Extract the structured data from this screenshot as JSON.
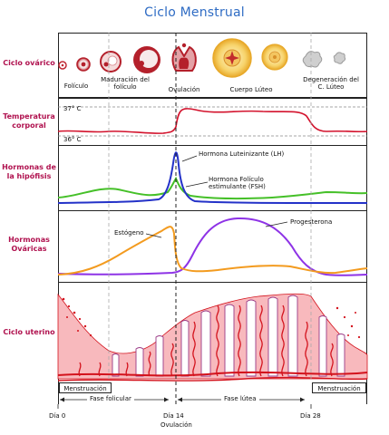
{
  "title": "Ciclo Menstrual",
  "rows": {
    "ovarian": "Ciclo ovárico",
    "temperature": "Temperatura corporal",
    "pituitary": "Hormonas de la hipófisis",
    "ovarian_hormones": "Hormonas Ováricas",
    "uterine": "Ciclo uterino"
  },
  "ovarian_stages": {
    "follicle": "Folículo",
    "maturation": "Maduración del folículo",
    "ovulation": "Ovulación",
    "corpus_luteum": "Cuerpo Lúteo",
    "degeneration": "Degeneración del C. Lúteo"
  },
  "temperature_labels": {
    "high": "37° C",
    "low": "36° C"
  },
  "pituitary_labels": {
    "lh": "Hormona Luteinizante (LH)",
    "fsh": "Hormona Folículo estimulante (FSH)"
  },
  "ovarian_hormone_labels": {
    "estrogen": "Estógeno",
    "progesterone": "Progesterona"
  },
  "phases": {
    "menstruation_start": "Menstruación",
    "follicular": "Fase folicular",
    "luteal": "Fase lútea",
    "menstruation_end": "Menstruación"
  },
  "days": {
    "day0": "Día 0",
    "day14": "Día 14",
    "ovulation": "Ovulación",
    "day28": "Día 28"
  },
  "colors": {
    "title": "#2f6cc4",
    "label": "#b0124f",
    "temperature": "#d3122c",
    "lh": "#2432c8",
    "fsh": "#45c028",
    "estrogen": "#f39b1f",
    "progesterone": "#8e33e6",
    "endometrium": "#f8b9bd",
    "vessels": "#d3121c"
  }
}
